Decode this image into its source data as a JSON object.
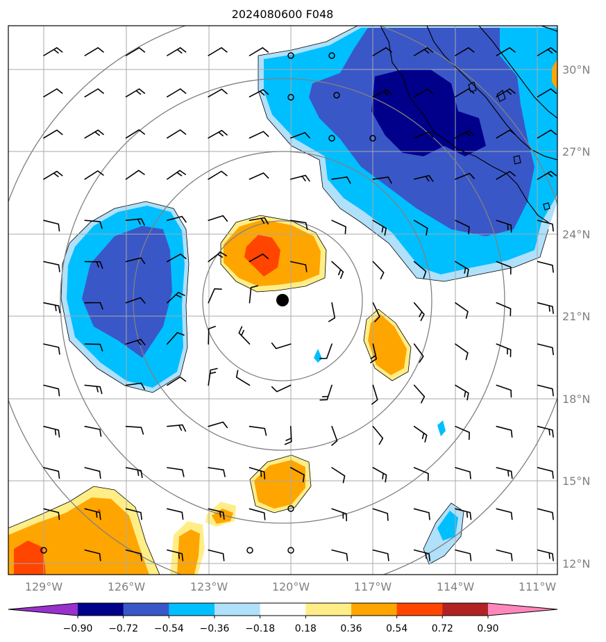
{
  "title": "2024080600 F048",
  "latitude_labels": [
    "30°N",
    "27°N",
    "24°N",
    "21°N",
    "18°N",
    "15°N",
    "12°N"
  ],
  "longitude_labels": [
    "129°W",
    "126°W",
    "123°W",
    "120°W",
    "117°W",
    "114°W",
    "111°W"
  ],
  "colorbar": {
    "tick_labels": [
      "−0.90",
      "−0.72",
      "−0.54",
      "−0.36",
      "−0.18",
      "0.18",
      "0.36",
      "0.54",
      "0.72",
      "0.90"
    ],
    "colors": [
      "#9932cc",
      "#00008b",
      "#3a57c8",
      "#00bfff",
      "#b0e0fa",
      "#ffffff",
      "#ffee88",
      "#ffa500",
      "#ff4500",
      "#b22222",
      "#ff88bb"
    ]
  },
  "storm_center": {
    "lon": -120.3,
    "lat": 21.6
  },
  "range_ring_count": 4,
  "layers": [
    "filled anomaly contours",
    "wind barbs",
    "coastlines",
    "lat/lon gridlines",
    "range rings"
  ]
}
